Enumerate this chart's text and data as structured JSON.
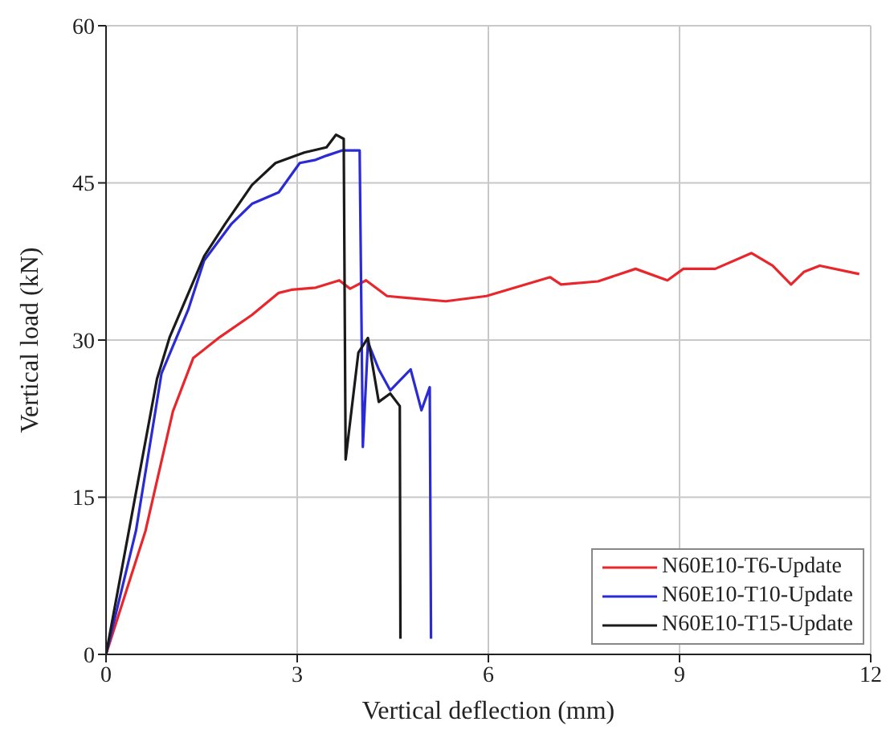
{
  "chart_data": {
    "type": "line",
    "xlabel": "Vertical deflection (mm)",
    "ylabel": "Vertical load (kN)",
    "xlim": [
      0,
      12
    ],
    "xticks": [
      0,
      3,
      6,
      9,
      12
    ],
    "ylim": [
      0,
      60
    ],
    "yticks": [
      0,
      15,
      30,
      45,
      60
    ],
    "grid": true,
    "legend": "bottom right",
    "marker": "none",
    "line_style": "solid",
    "series": [
      {
        "name": "N60E10-T6-Update",
        "color": "#e8262b",
        "x": [
          0,
          0.62,
          1.05,
          1.37,
          1.79,
          2.29,
          2.71,
          2.91,
          3.29,
          3.61,
          3.66,
          3.83,
          4.08,
          4.41,
          5.33,
          5.97,
          6.97,
          7.14,
          7.72,
          8.31,
          8.81,
          9.06,
          9.56,
          10.13,
          10.46,
          10.75,
          10.95,
          11.2,
          11.82
        ],
        "values": [
          0,
          11.8,
          23.2,
          28.3,
          30.3,
          32.4,
          34.5,
          34.8,
          35.0,
          35.6,
          35.7,
          34.9,
          35.7,
          34.2,
          33.7,
          34.2,
          36.0,
          35.3,
          35.6,
          36.8,
          35.7,
          36.8,
          36.8,
          38.3,
          37.1,
          35.3,
          36.5,
          37.1,
          36.3
        ]
      },
      {
        "name": "N60E10-T10-Update",
        "color": "#2b2bd6",
        "x": [
          0,
          0.47,
          0.87,
          1.29,
          1.54,
          1.97,
          2.29,
          2.71,
          3.04,
          3.29,
          3.46,
          3.71,
          3.98,
          4.03,
          4.11,
          4.28,
          4.46,
          4.78,
          4.95,
          5.08,
          5.1
        ],
        "values": [
          0,
          11.8,
          26.8,
          32.9,
          37.6,
          41.1,
          43.0,
          44.1,
          46.9,
          47.2,
          47.6,
          48.1,
          48.1,
          19.8,
          29.8,
          27.2,
          25.2,
          27.2,
          23.3,
          25.5,
          1.5
        ]
      },
      {
        "name": "N60E10-T15-Update",
        "color": "#1a1a1a",
        "x": [
          0,
          0.8,
          1.0,
          1.54,
          1.87,
          2.29,
          2.66,
          3.11,
          3.46,
          3.61,
          3.73,
          3.76,
          3.96,
          4.11,
          4.28,
          4.46,
          4.61,
          4.62
        ],
        "values": [
          0,
          26.3,
          30.3,
          38.0,
          41.1,
          44.8,
          46.9,
          47.9,
          48.4,
          49.6,
          49.2,
          18.6,
          28.8,
          30.2,
          24.1,
          24.9,
          23.7,
          1.5
        ]
      }
    ]
  }
}
